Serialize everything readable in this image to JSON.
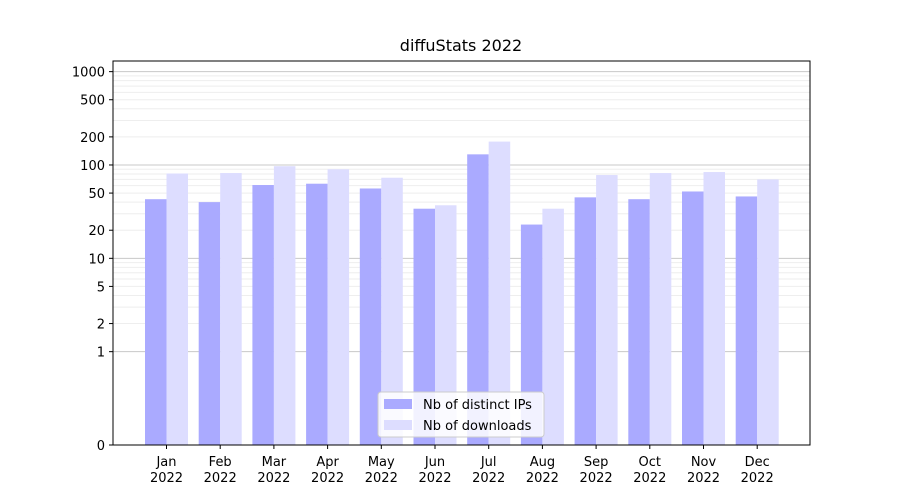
{
  "chart_data": {
    "type": "bar",
    "title": "diffuStats 2022",
    "xlabel": "",
    "ylabel": "",
    "y_scale": "symlog",
    "ylim": [
      0,
      1300
    ],
    "y_ticks": [
      0,
      1,
      2,
      5,
      10,
      20,
      50,
      100,
      200,
      500,
      1000
    ],
    "y_tick_labels": [
      "0",
      "1",
      "2",
      "5",
      "10",
      "20",
      "50",
      "100",
      "200",
      "500",
      "1000"
    ],
    "grid": true,
    "legend_position": "bottom-center",
    "categories": [
      "Jan",
      "Feb",
      "Mar",
      "Apr",
      "May",
      "Jun",
      "Jul",
      "Aug",
      "Sep",
      "Oct",
      "Nov",
      "Dec"
    ],
    "category_years": [
      "2022",
      "2022",
      "2022",
      "2022",
      "2022",
      "2022",
      "2022",
      "2022",
      "2022",
      "2022",
      "2022",
      "2022"
    ],
    "series": [
      {
        "name": "Nb of distinct IPs",
        "color": "#aaaaff",
        "values": [
          43,
          40,
          61,
          63,
          56,
          34,
          130,
          23,
          45,
          43,
          52,
          46
        ]
      },
      {
        "name": "Nb of downloads",
        "color": "#ddddff",
        "values": [
          81,
          82,
          97,
          90,
          73,
          37,
          178,
          34,
          78,
          82,
          84,
          70
        ]
      }
    ]
  }
}
